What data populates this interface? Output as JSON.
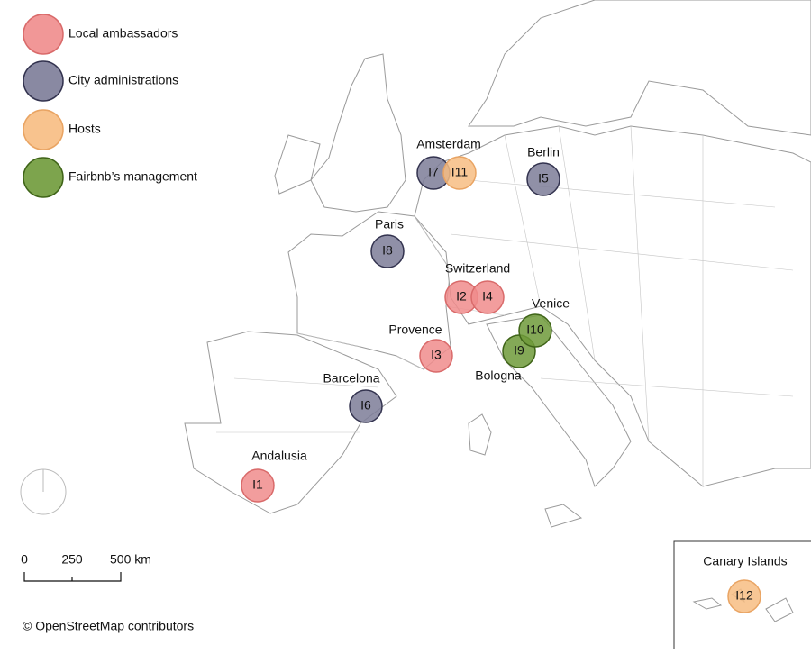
{
  "legend": [
    {
      "label": "Local ambassadors",
      "color": "#f08c8c",
      "stroke": "#d96a6a",
      "initiatives": [
        "I1",
        "I2",
        "I3",
        "I4"
      ]
    },
    {
      "label": "City administrations",
      "color": "#7c7c98",
      "stroke": "#33334f",
      "initiatives": [
        "I5",
        "I6",
        "I7",
        "I8"
      ]
    },
    {
      "label": "Hosts",
      "color": "#f7bd82",
      "stroke": "#e9a463",
      "initiatives": [
        "I11",
        "I12"
      ]
    },
    {
      "label": "Fairbnb’s management",
      "color": "#6f9a3a",
      "stroke": "#3f6418",
      "initiatives": [
        "I9",
        "I10"
      ]
    }
  ],
  "places": [
    "Amsterdam",
    "Berlin",
    "Paris",
    "Switzerland",
    "Venice",
    "Provence",
    "Bologna",
    "Barcelona",
    "Andalusia"
  ],
  "inset": {
    "title": "Canary Islands"
  },
  "scale": {
    "labels": [
      "0",
      "250",
      "500 km"
    ]
  },
  "attribution": "© OpenStreetMap  contributors"
}
